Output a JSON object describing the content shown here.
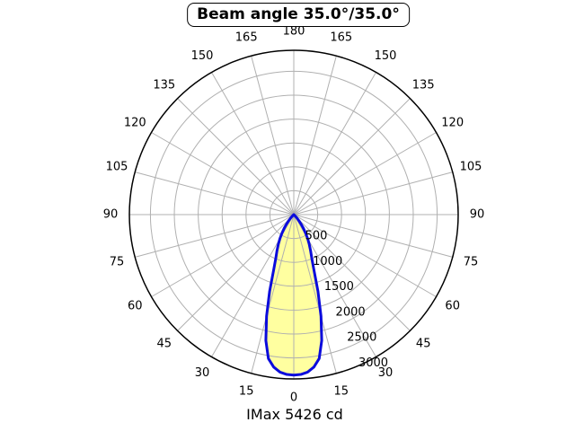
{
  "chart_data": {
    "type": "polar",
    "title": "Beam angle 35.0°/35.0°",
    "footer": "IMax 5426 cd",
    "imax_cd": 5426,
    "beam_angle_h_deg": 35.0,
    "beam_angle_v_deg": 35.0,
    "angle_ticks_deg": [
      0,
      15,
      30,
      45,
      60,
      75,
      90,
      105,
      120,
      135,
      150,
      165,
      180
    ],
    "radial_ticks": [
      500,
      1000,
      1500,
      2000,
      2500,
      3000
    ],
    "radial_axis_max": 3440,
    "grid_angle_step_deg": 15,
    "curve_points": [
      [
        0,
        3360
      ],
      [
        2.5,
        3350
      ],
      [
        5,
        3310
      ],
      [
        7.5,
        3220
      ],
      [
        10,
        3060
      ],
      [
        12.5,
        2700
      ],
      [
        15,
        2200
      ],
      [
        17.5,
        1680
      ],
      [
        20,
        1230
      ],
      [
        22.5,
        980
      ],
      [
        25,
        830
      ],
      [
        27.5,
        700
      ],
      [
        30,
        580
      ],
      [
        32.5,
        460
      ],
      [
        35,
        350
      ],
      [
        37.5,
        250
      ],
      [
        40,
        165
      ],
      [
        42.5,
        95
      ],
      [
        45,
        45
      ],
      [
        47.5,
        15
      ],
      [
        50,
        0
      ]
    ],
    "colors": {
      "curve_stroke": "#0b0bdc",
      "curve_fill": "#ffffa0",
      "grid": "#b0b0b0",
      "axis": "#000000",
      "text": "#000000",
      "background": "#ffffff"
    }
  }
}
